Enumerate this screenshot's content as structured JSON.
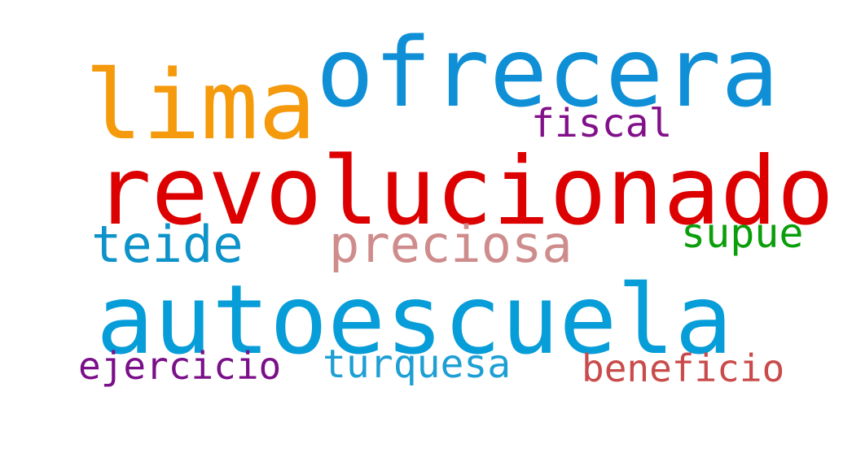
{
  "words": {
    "ofrecera": {
      "text": "ofrecera",
      "color": "#0f8fd6"
    },
    "lima": {
      "text": "lima",
      "color": "#f59a0c"
    },
    "fiscal": {
      "text": "fiscal",
      "color": "#82108a"
    },
    "revolucionado": {
      "text": "revolucionado",
      "color": "#dd0000"
    },
    "teide": {
      "text": "teide",
      "color": "#0d93c9"
    },
    "preciosa": {
      "text": "preciosa",
      "color": "#cf8c8c"
    },
    "supue": {
      "text": "supue",
      "color": "#0a9e0a"
    },
    "autoescuela": {
      "text": "autoescuela",
      "color": "#079dd8"
    },
    "ejercicio": {
      "text": "ejercicio",
      "color": "#7a0f89"
    },
    "turquesa": {
      "text": "turquesa",
      "color": "#1e9fd4"
    },
    "beneficio": {
      "text": "beneficio",
      "color": "#c94b4b"
    }
  },
  "colors": {
    "background": "#ffffff"
  }
}
